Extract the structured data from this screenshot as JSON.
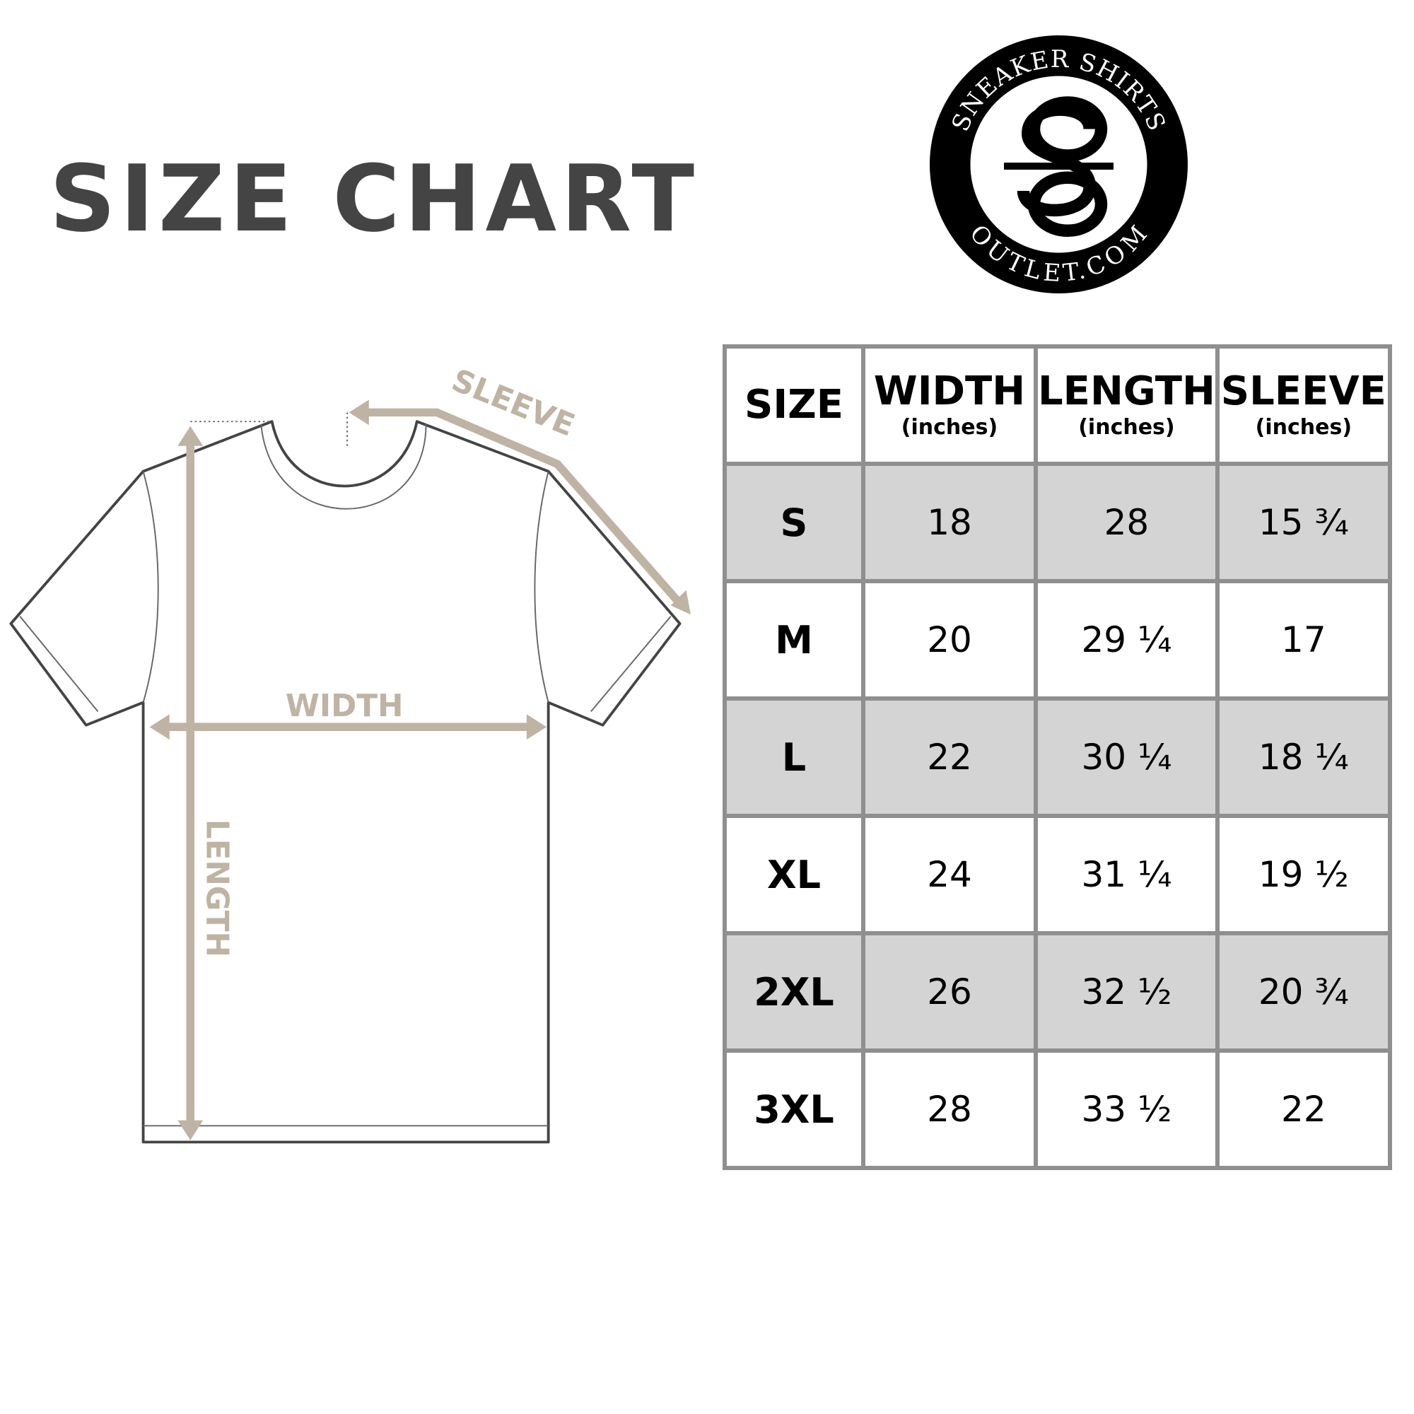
{
  "title": "SIZE CHART",
  "logo": {
    "top_text": "SNEAKER SHIRTS",
    "bottom_text": "OUTLET.COM",
    "monogram": "SO"
  },
  "diagram": {
    "sleeve_label": "SLEEVE",
    "width_label": "WIDTH",
    "length_label": "LENGTH",
    "accent_color": "#bfb3a3"
  },
  "table": {
    "headers": [
      {
        "label": "SIZE",
        "sub": ""
      },
      {
        "label": "WIDTH",
        "sub": "(inches)"
      },
      {
        "label": "LENGTH",
        "sub": "(inches)"
      },
      {
        "label": "SLEEVE",
        "sub": "(inches)"
      }
    ],
    "rows": [
      [
        "S",
        "18",
        "28",
        "15 ¾"
      ],
      [
        "M",
        "20",
        "29 ¼",
        "17"
      ],
      [
        "L",
        "22",
        "30 ¼",
        "18 ¼"
      ],
      [
        "XL",
        "24",
        "31 ¼",
        "19 ½"
      ],
      [
        "2XL",
        "26",
        "32 ½",
        "20 ¾"
      ],
      [
        "3XL",
        "28",
        "33 ½",
        "22"
      ]
    ],
    "shade_color": "#d4d4d4",
    "border_color": "#8f8f8f"
  }
}
